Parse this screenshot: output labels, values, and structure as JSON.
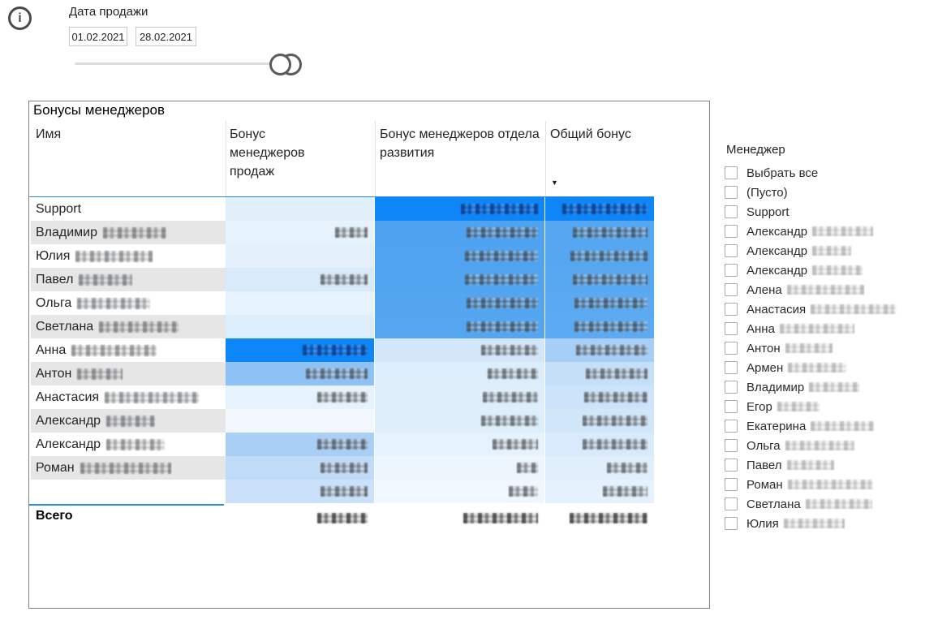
{
  "info_button": {
    "glyph": "i"
  },
  "date_slicer": {
    "title": "Дата продажи",
    "start_value": "01.02.2021",
    "end_value": "28.02.2021"
  },
  "bonus_table": {
    "title": "Бонусы менеджеров",
    "columns": [
      "Имя",
      "Бонус менеджеров продаж",
      "Бонус менеджеров отдела развития",
      "Общий бонус"
    ],
    "sort": {
      "column": "Общий бонус",
      "direction": "desc",
      "glyph": "▼"
    },
    "accent_line_color": "#2B8CE6",
    "max_fill_color": "#0E86F7",
    "rows": [
      {
        "name": "Support",
        "surname_w": 0,
        "cells": [
          {
            "bg": "#E1EFFB",
            "w": 0
          },
          {
            "bg": "#0E86F7",
            "w": 95,
            "d": true
          },
          {
            "bg": "#0E86F7",
            "w": 105,
            "d": true
          }
        ]
      },
      {
        "name": "Владимир",
        "surname_w": 78,
        "cells": [
          {
            "bg": "#E7F3FC",
            "w": 40
          },
          {
            "bg": "#4EA2F0",
            "w": 88
          },
          {
            "bg": "#55A7F1",
            "w": 92
          }
        ]
      },
      {
        "name": "Юлия",
        "surname_w": 95,
        "cells": [
          {
            "bg": "#E3F0FB",
            "w": 0
          },
          {
            "bg": "#50A3F0",
            "w": 90
          },
          {
            "bg": "#56A7F1",
            "w": 95
          }
        ]
      },
      {
        "name": "Павел",
        "surname_w": 66,
        "cells": [
          {
            "bg": "#D9EBFA",
            "w": 58
          },
          {
            "bg": "#51A4F0",
            "w": 90
          },
          {
            "bg": "#58A8F1",
            "w": 92
          }
        ]
      },
      {
        "name": "Ольга",
        "surname_w": 90,
        "cells": [
          {
            "bg": "#E7F3FC",
            "w": 0
          },
          {
            "bg": "#53A5F0",
            "w": 88
          },
          {
            "bg": "#5AA9F1",
            "w": 90
          }
        ]
      },
      {
        "name": "Светлана",
        "surname_w": 98,
        "cells": [
          {
            "bg": "#DCEDFB",
            "w": 0
          },
          {
            "bg": "#55A6F1",
            "w": 88
          },
          {
            "bg": "#5CAAF2",
            "w": 90
          }
        ]
      },
      {
        "name": "Анна",
        "surname_w": 105,
        "cells": [
          {
            "bg": "#0D86F8",
            "w": 80,
            "d": true
          },
          {
            "bg": "#D4E7FA",
            "w": 70
          },
          {
            "bg": "#A6CEF6",
            "w": 88
          }
        ]
      },
      {
        "name": "Антон",
        "surname_w": 56,
        "cells": [
          {
            "bg": "#8FC2F4",
            "w": 76
          },
          {
            "bg": "#DCEDFB",
            "w": 62
          },
          {
            "bg": "#C5DFF9",
            "w": 76
          }
        ]
      },
      {
        "name": "Анастасия",
        "surname_w": 116,
        "cells": [
          {
            "bg": "#E7F3FC",
            "w": 62
          },
          {
            "bg": "#DEEEFB",
            "w": 68
          },
          {
            "bg": "#CCE3F9",
            "w": 78
          }
        ]
      },
      {
        "name": "Александр",
        "surname_w": 60,
        "cells": [
          {
            "bg": "#F2F8FE",
            "w": 0
          },
          {
            "bg": "#DEEEFB",
            "w": 70
          },
          {
            "bg": "#D2E6FA",
            "w": 80
          }
        ]
      },
      {
        "name": "Александр",
        "surname_w": 72,
        "cells": [
          {
            "bg": "#A9CFF5",
            "w": 62
          },
          {
            "bg": "#E7F3FC",
            "w": 56
          },
          {
            "bg": "#D8EAFB",
            "w": 80
          }
        ]
      },
      {
        "name": "Роман",
        "surname_w": 112,
        "cells": [
          {
            "bg": "#C1DCF8",
            "w": 58
          },
          {
            "bg": "#EDF5FD",
            "w": 26
          },
          {
            "bg": "#E1EFFC",
            "w": 50
          }
        ]
      },
      {
        "name": "",
        "surname_w": 0,
        "cells": [
          {
            "bg": "#CAE1F9",
            "w": 58
          },
          {
            "bg": "#F0F7FE",
            "w": 36
          },
          {
            "bg": "#E5F1FC",
            "w": 55
          }
        ]
      }
    ],
    "total": {
      "label": "Всего",
      "blob_widths": [
        62,
        92,
        96
      ]
    }
  },
  "manager_slicer": {
    "title": "Менеджер",
    "items": [
      {
        "label": "Выбрать все",
        "w": 0
      },
      {
        "label": "(Пусто)",
        "w": 0
      },
      {
        "label": "Support",
        "w": 0
      },
      {
        "label": "Александр",
        "w": 75
      },
      {
        "label": "Александр",
        "w": 48
      },
      {
        "label": "Александр",
        "w": 62
      },
      {
        "label": "Алена",
        "w": 95
      },
      {
        "label": "Анастасия",
        "w": 105
      },
      {
        "label": "Анна",
        "w": 92
      },
      {
        "label": "Антон",
        "w": 58
      },
      {
        "label": "Армен",
        "w": 72
      },
      {
        "label": "Владимир",
        "w": 62
      },
      {
        "label": "Егор",
        "w": 52
      },
      {
        "label": "Екатерина",
        "w": 78
      },
      {
        "label": "Ольга",
        "w": 85
      },
      {
        "label": "Павел",
        "w": 58
      },
      {
        "label": "Роман",
        "w": 105
      },
      {
        "label": "Светлана",
        "w": 82
      },
      {
        "label": "Юлия",
        "w": 75
      }
    ]
  }
}
